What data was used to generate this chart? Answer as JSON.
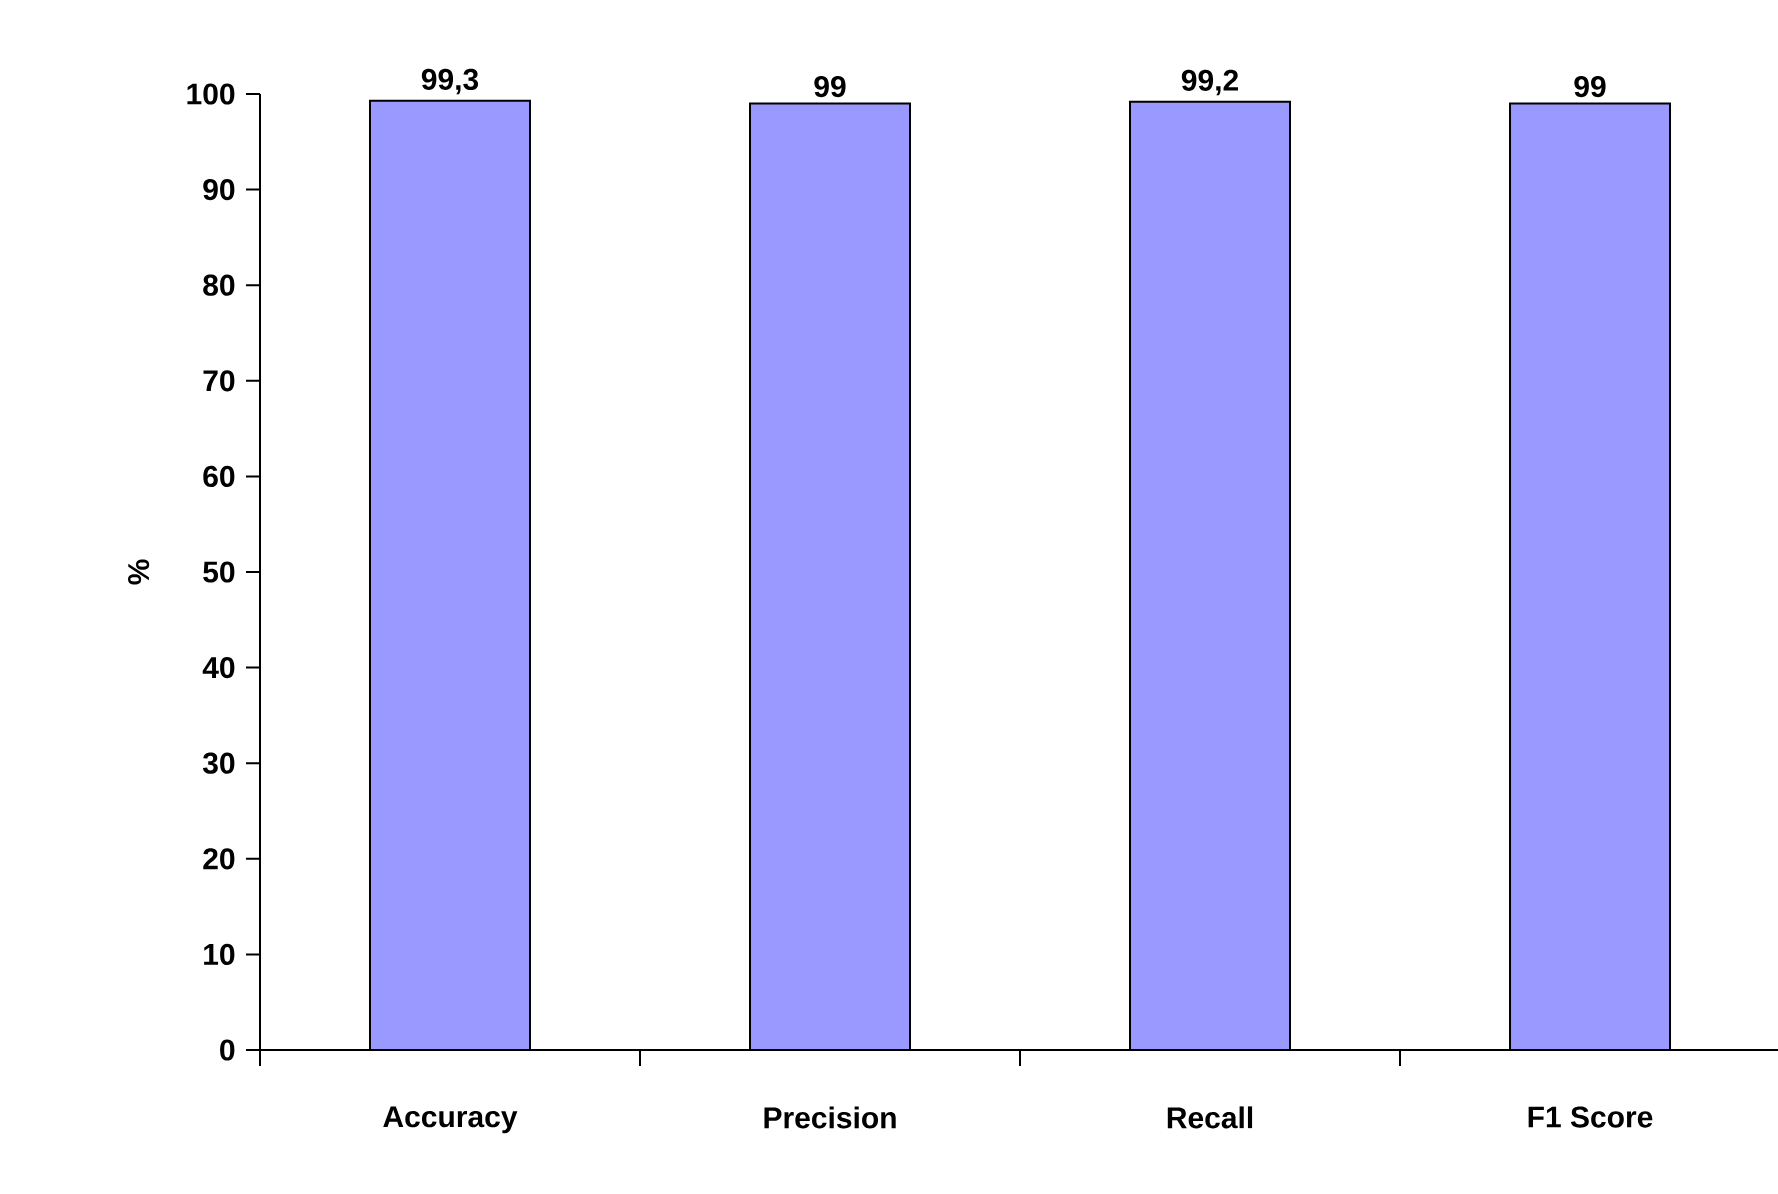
{
  "chart_data": {
    "type": "bar",
    "ylabel": "%",
    "categories": [
      "Accuracy",
      "Precision",
      "Recall",
      "F1 Score"
    ],
    "values": [
      99.3,
      99,
      99.2,
      99
    ],
    "value_labels": [
      "99,3",
      "99",
      "99,2",
      "99"
    ],
    "color": "#9999ff",
    "ylim": [
      0,
      100
    ],
    "yticks": [
      0,
      10,
      20,
      30,
      40,
      50,
      60,
      70,
      80,
      90,
      100
    ],
    "grid": false
  }
}
